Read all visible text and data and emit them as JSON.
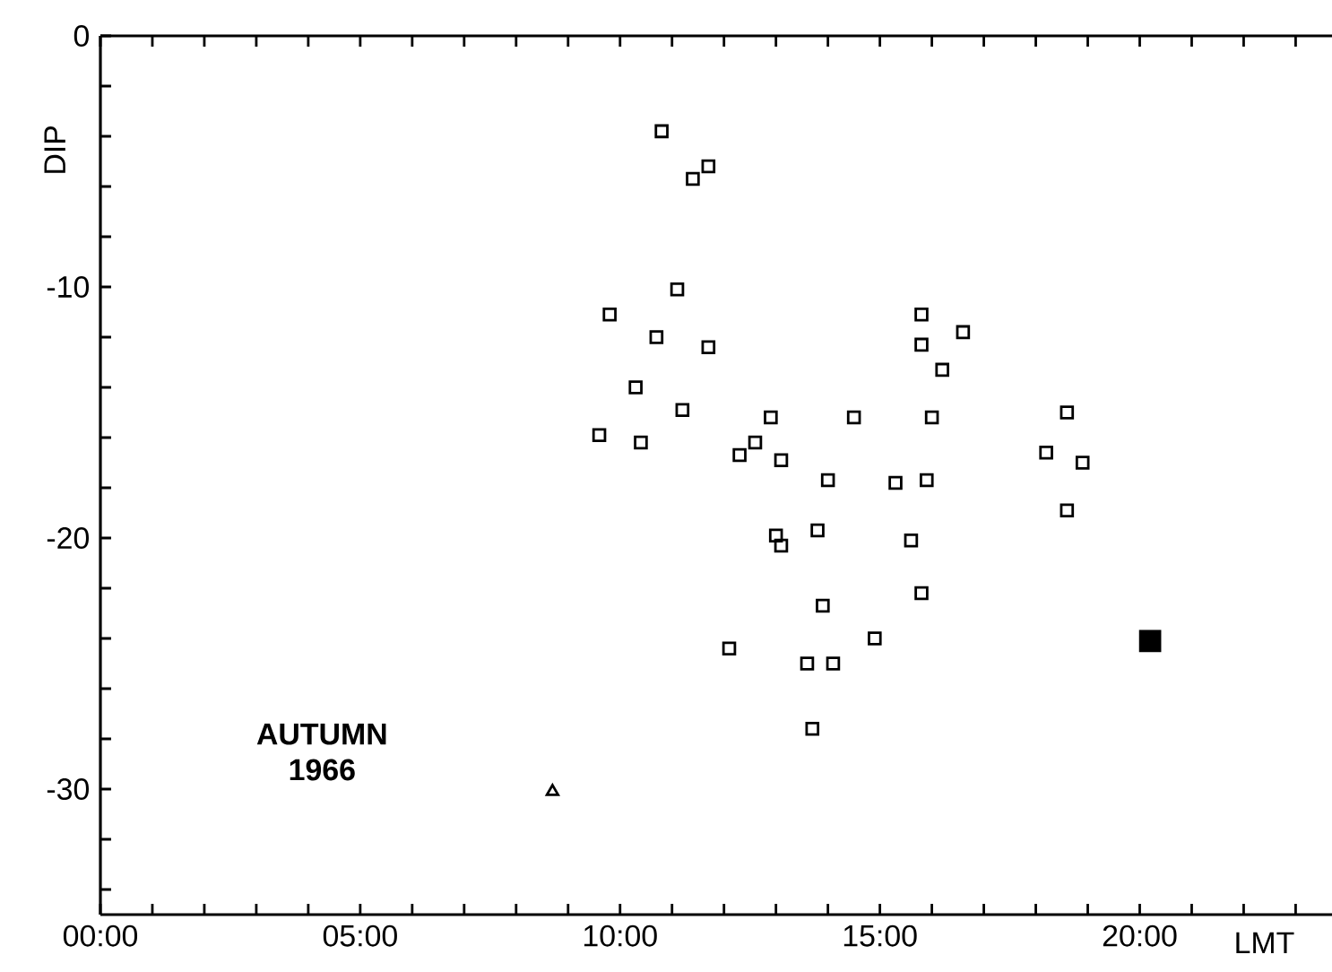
{
  "chart_data": {
    "type": "scatter",
    "xlabel": "LMT",
    "ylabel": "DIP",
    "annotations": [
      "AUTUMN 1966"
    ],
    "xlim": [
      0,
      23.7
    ],
    "ylim": [
      -35,
      0
    ],
    "xticks": [
      {
        "value": 0,
        "label": "00:00"
      },
      {
        "value": 1,
        "label": null
      },
      {
        "value": 2,
        "label": null
      },
      {
        "value": 3,
        "label": null
      },
      {
        "value": 4,
        "label": null
      },
      {
        "value": 5,
        "label": "05:00"
      },
      {
        "value": 6,
        "label": null
      },
      {
        "value": 7,
        "label": null
      },
      {
        "value": 8,
        "label": null
      },
      {
        "value": 9,
        "label": null
      },
      {
        "value": 10,
        "label": "10:00"
      },
      {
        "value": 11,
        "label": null
      },
      {
        "value": 12,
        "label": null
      },
      {
        "value": 13,
        "label": null
      },
      {
        "value": 14,
        "label": null
      },
      {
        "value": 15,
        "label": "15:00"
      },
      {
        "value": 16,
        "label": null
      },
      {
        "value": 17,
        "label": null
      },
      {
        "value": 18,
        "label": null
      },
      {
        "value": 19,
        "label": null
      },
      {
        "value": 20,
        "label": "20:00"
      },
      {
        "value": 21,
        "label": null
      },
      {
        "value": 22,
        "label": null
      },
      {
        "value": 23,
        "label": null
      }
    ],
    "yticks": [
      0,
      {
        "value": -2,
        "label": null
      },
      {
        "value": -4,
        "label": null
      },
      {
        "value": -6,
        "label": null
      },
      {
        "value": -8,
        "label": null
      },
      -10,
      {
        "value": -12,
        "label": null
      },
      {
        "value": -14,
        "label": null
      },
      {
        "value": -16,
        "label": null
      },
      {
        "value": -18,
        "label": null
      },
      -20,
      {
        "value": -22,
        "label": null
      },
      {
        "value": -24,
        "label": null
      },
      {
        "value": -26,
        "label": null
      },
      {
        "value": -28,
        "label": null
      },
      -30,
      {
        "value": -32,
        "label": null
      },
      {
        "value": -34,
        "label": null
      }
    ],
    "series": [
      {
        "color": "#000000",
        "marker": "square",
        "x": [
          10.8,
          11.4,
          11.7,
          11.1,
          9.8,
          10.7,
          11.7,
          9.6,
          10.3,
          10.4,
          11.2,
          12.3,
          12.6,
          12.9,
          13.1,
          13.0,
          13.1,
          12.1,
          13.8,
          13.9,
          14.0,
          13.6,
          14.1,
          13.7,
          14.9,
          15.8,
          15.6,
          18.6,
          15.8,
          16.6,
          15.8,
          16.2,
          14.5,
          16.0,
          18.6,
          18.2,
          18.9,
          15.3,
          15.9
        ],
        "values": [
          -3.8,
          -5.7,
          -5.2,
          -10.1,
          -11.1,
          -12.0,
          -12.4,
          -15.9,
          -14.0,
          -16.2,
          -14.9,
          -16.7,
          -16.2,
          -15.2,
          -16.9,
          -19.9,
          -20.3,
          -24.4,
          -19.7,
          -22.7,
          -17.7,
          -25.0,
          -25.0,
          -27.6,
          -24.0,
          -22.2,
          -20.1,
          -18.9,
          -11.1,
          -11.8,
          -12.3,
          -13.3,
          -15.2,
          -15.2,
          -15.0,
          -16.6,
          -17.0,
          -17.8,
          -17.7
        ]
      },
      {
        "color": "#000000",
        "marker": "triangle",
        "x": [
          8.7
        ],
        "values": [
          -30.1
        ]
      },
      {
        "color": "#000000",
        "marker": "square*",
        "x": [
          20.2
        ],
        "values": [
          -24.1
        ]
      }
    ]
  }
}
